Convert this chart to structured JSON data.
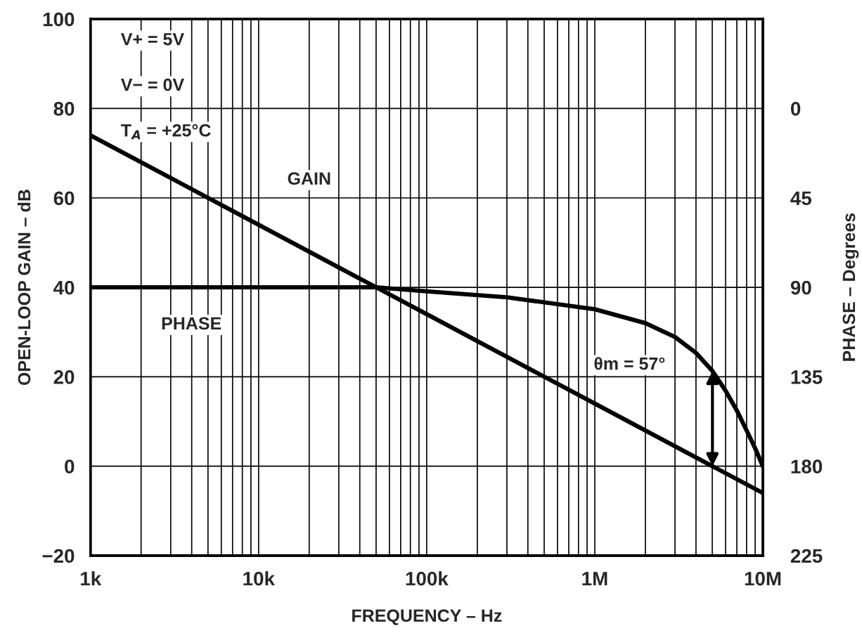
{
  "chart_data": {
    "type": "line",
    "xlabel": "FREQUENCY – Hz",
    "ylabel": "OPEN-LOOP GAIN – dB",
    "y2label": "PHASE – Degrees",
    "log": "x",
    "grid": true,
    "legend": false,
    "marker": "none",
    "line_style": "solid",
    "xlim": [
      1000,
      10000000
    ],
    "xticks": [
      {
        "value": 1000,
        "label": "1k"
      },
      {
        "value": 2000,
        "label": null
      },
      {
        "value": 3000,
        "label": null
      },
      {
        "value": 4000,
        "label": null
      },
      {
        "value": 5000,
        "label": null
      },
      {
        "value": 6000,
        "label": null
      },
      {
        "value": 7000,
        "label": null
      },
      {
        "value": 8000,
        "label": null
      },
      {
        "value": 9000,
        "label": null
      },
      {
        "value": 10000,
        "label": "10k"
      },
      {
        "value": 20000,
        "label": null
      },
      {
        "value": 30000,
        "label": null
      },
      {
        "value": 40000,
        "label": null
      },
      {
        "value": 50000,
        "label": null
      },
      {
        "value": 60000,
        "label": null
      },
      {
        "value": 70000,
        "label": null
      },
      {
        "value": 80000,
        "label": null
      },
      {
        "value": 90000,
        "label": null
      },
      {
        "value": 100000,
        "label": "100k"
      },
      {
        "value": 200000,
        "label": null
      },
      {
        "value": 300000,
        "label": null
      },
      {
        "value": 400000,
        "label": null
      },
      {
        "value": 500000,
        "label": null
      },
      {
        "value": 600000,
        "label": null
      },
      {
        "value": 700000,
        "label": null
      },
      {
        "value": 800000,
        "label": null
      },
      {
        "value": 900000,
        "label": null
      },
      {
        "value": 1000000,
        "label": "1M"
      },
      {
        "value": 2000000,
        "label": null
      },
      {
        "value": 3000000,
        "label": null
      },
      {
        "value": 4000000,
        "label": null
      },
      {
        "value": 5000000,
        "label": null
      },
      {
        "value": 6000000,
        "label": null
      },
      {
        "value": 7000000,
        "label": null
      },
      {
        "value": 8000000,
        "label": null
      },
      {
        "value": 9000000,
        "label": null
      },
      {
        "value": 10000000,
        "label": "10M"
      }
    ],
    "ylim": [
      -20,
      100
    ],
    "yticks": [
      {
        "value": -20,
        "label": "−20"
      },
      0,
      20,
      40,
      60,
      80,
      100
    ],
    "y2lim": [
      225,
      -45
    ],
    "y2ticks": [
      0,
      45,
      90,
      135,
      180,
      225
    ],
    "series": [
      {
        "color": "#000000",
        "x": [
          1000,
          10000,
          100000,
          1000000,
          10000000
        ],
        "values": [
          74,
          54,
          34,
          14,
          -6
        ]
      },
      {
        "color": "#000000",
        "axis": "y2",
        "x": [
          1000,
          10000,
          50000,
          100000,
          300000,
          1000000,
          2000000,
          3000000,
          4000000,
          5000000,
          6000000,
          7000000,
          8000000,
          9000000,
          10000000
        ],
        "values": [
          90,
          90,
          90,
          92,
          95,
          101,
          108,
          115,
          123,
          132,
          142,
          152,
          162,
          171,
          180
        ]
      }
    ],
    "annotations": [
      "V+ = 5V",
      "V− = 0V",
      "T$_{A}$ = +25°C",
      {
        "text": "GAIN",
        "x": 20000,
        "y": 64
      },
      "PHASE",
      "θm = 57°"
    ]
  }
}
